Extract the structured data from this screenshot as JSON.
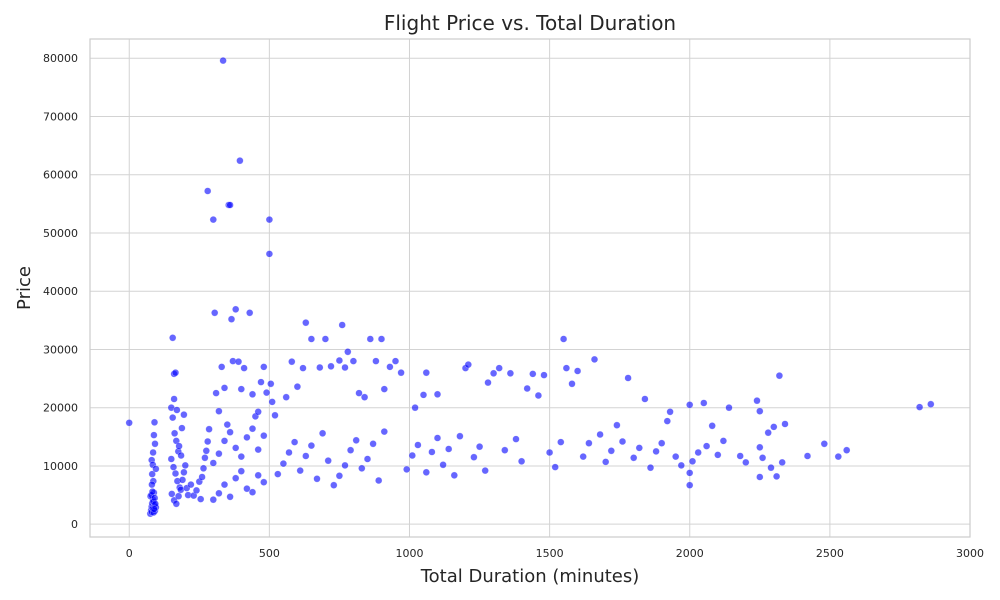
{
  "chart_data": {
    "type": "scatter",
    "title": "Flight Price vs. Total Duration",
    "xlabel": "Total Duration (minutes)",
    "ylabel": "Price",
    "xlim": [
      -140,
      3000
    ],
    "ylim": [
      -2200,
      83300
    ],
    "xticks": [
      0,
      500,
      1000,
      1500,
      2000,
      2500,
      3000
    ],
    "yticks": [
      0,
      10000,
      20000,
      30000,
      40000,
      50000,
      60000,
      70000,
      80000
    ],
    "grid": true,
    "color": "#0000ff",
    "series": [
      {
        "points": [
          [
            0,
            17400
          ],
          [
            75,
            1800
          ],
          [
            78,
            2400
          ],
          [
            80,
            3000
          ],
          [
            82,
            3600
          ],
          [
            85,
            4200
          ],
          [
            76,
            4800
          ],
          [
            88,
            5400
          ],
          [
            80,
            2100
          ],
          [
            84,
            2700
          ],
          [
            90,
            3300
          ],
          [
            86,
            3900
          ],
          [
            92,
            2300
          ],
          [
            95,
            2900
          ],
          [
            79,
            5000
          ],
          [
            83,
            5600
          ],
          [
            87,
            2000
          ],
          [
            91,
            4500
          ],
          [
            93,
            3500
          ],
          [
            89,
            2600
          ],
          [
            80,
            11000
          ],
          [
            85,
            12300
          ],
          [
            88,
            15300
          ],
          [
            90,
            17500
          ],
          [
            82,
            8600
          ],
          [
            86,
            7400
          ],
          [
            92,
            13800
          ],
          [
            84,
            10200
          ],
          [
            95,
            9500
          ],
          [
            81,
            6800
          ],
          [
            150,
            20000
          ],
          [
            155,
            32000
          ],
          [
            160,
            25800
          ],
          [
            165,
            26000
          ],
          [
            160,
            21500
          ],
          [
            170,
            19600
          ],
          [
            155,
            18300
          ],
          [
            162,
            15600
          ],
          [
            168,
            14300
          ],
          [
            175,
            12500
          ],
          [
            150,
            11200
          ],
          [
            158,
            9800
          ],
          [
            165,
            8700
          ],
          [
            172,
            7400
          ],
          [
            180,
            6300
          ],
          [
            152,
            5200
          ],
          [
            160,
            4100
          ],
          [
            168,
            3500
          ],
          [
            176,
            4800
          ],
          [
            184,
            5900
          ],
          [
            190,
            7600
          ],
          [
            195,
            8900
          ],
          [
            200,
            10100
          ],
          [
            185,
            11800
          ],
          [
            178,
            13400
          ],
          [
            188,
            16500
          ],
          [
            195,
            18800
          ],
          [
            205,
            6200
          ],
          [
            210,
            5000
          ],
          [
            220,
            6800
          ],
          [
            230,
            4900
          ],
          [
            240,
            5800
          ],
          [
            250,
            7300
          ],
          [
            255,
            4300
          ],
          [
            260,
            8100
          ],
          [
            265,
            9600
          ],
          [
            270,
            11400
          ],
          [
            275,
            12600
          ],
          [
            280,
            14200
          ],
          [
            285,
            16300
          ],
          [
            280,
            57200
          ],
          [
            300,
            52300
          ],
          [
            305,
            36300
          ],
          [
            310,
            22500
          ],
          [
            320,
            19400
          ],
          [
            330,
            27000
          ],
          [
            335,
            79600
          ],
          [
            340,
            23400
          ],
          [
            350,
            17100
          ],
          [
            355,
            54800
          ],
          [
            360,
            54800
          ],
          [
            365,
            35200
          ],
          [
            370,
            28000
          ],
          [
            380,
            36900
          ],
          [
            390,
            27900
          ],
          [
            395,
            62400
          ],
          [
            400,
            23200
          ],
          [
            410,
            26800
          ],
          [
            430,
            36300
          ],
          [
            440,
            22300
          ],
          [
            450,
            18500
          ],
          [
            460,
            19300
          ],
          [
            470,
            24400
          ],
          [
            480,
            27000
          ],
          [
            490,
            22600
          ],
          [
            500,
            52300
          ],
          [
            500,
            46400
          ],
          [
            505,
            24100
          ],
          [
            510,
            21000
          ],
          [
            520,
            18700
          ],
          [
            300,
            4200
          ],
          [
            320,
            5300
          ],
          [
            340,
            6800
          ],
          [
            360,
            4700
          ],
          [
            380,
            7900
          ],
          [
            400,
            9100
          ],
          [
            420,
            6100
          ],
          [
            440,
            5500
          ],
          [
            460,
            8400
          ],
          [
            480,
            7200
          ],
          [
            300,
            10500
          ],
          [
            320,
            12100
          ],
          [
            340,
            14300
          ],
          [
            360,
            15800
          ],
          [
            380,
            13100
          ],
          [
            400,
            11600
          ],
          [
            420,
            14900
          ],
          [
            440,
            16400
          ],
          [
            460,
            12800
          ],
          [
            480,
            15200
          ],
          [
            530,
            8600
          ],
          [
            550,
            10400
          ],
          [
            570,
            12300
          ],
          [
            590,
            14100
          ],
          [
            610,
            9200
          ],
          [
            630,
            11700
          ],
          [
            650,
            13500
          ],
          [
            670,
            7800
          ],
          [
            690,
            15600
          ],
          [
            710,
            10900
          ],
          [
            560,
            21800
          ],
          [
            580,
            27900
          ],
          [
            600,
            23600
          ],
          [
            620,
            26800
          ],
          [
            630,
            34600
          ],
          [
            650,
            31800
          ],
          [
            680,
            26900
          ],
          [
            700,
            31800
          ],
          [
            720,
            27100
          ],
          [
            750,
            28100
          ],
          [
            760,
            34200
          ],
          [
            770,
            26900
          ],
          [
            780,
            29600
          ],
          [
            800,
            28000
          ],
          [
            820,
            22500
          ],
          [
            840,
            21800
          ],
          [
            860,
            31800
          ],
          [
            880,
            28000
          ],
          [
            900,
            31800
          ],
          [
            910,
            23200
          ],
          [
            730,
            6700
          ],
          [
            750,
            8300
          ],
          [
            770,
            10100
          ],
          [
            790,
            12700
          ],
          [
            810,
            14400
          ],
          [
            830,
            9600
          ],
          [
            850,
            11200
          ],
          [
            870,
            13800
          ],
          [
            890,
            7500
          ],
          [
            910,
            15900
          ],
          [
            930,
            27000
          ],
          [
            950,
            28000
          ],
          [
            970,
            26000
          ],
          [
            990,
            9400
          ],
          [
            1010,
            11800
          ],
          [
            1030,
            13600
          ],
          [
            1050,
            22200
          ],
          [
            1060,
            8900
          ],
          [
            1080,
            12400
          ],
          [
            1100,
            14800
          ],
          [
            1020,
            20000
          ],
          [
            1060,
            26000
          ],
          [
            1100,
            22300
          ],
          [
            1120,
            10200
          ],
          [
            1140,
            12900
          ],
          [
            1160,
            8400
          ],
          [
            1180,
            15100
          ],
          [
            1200,
            26800
          ],
          [
            1210,
            27400
          ],
          [
            1230,
            11500
          ],
          [
            1250,
            13300
          ],
          [
            1270,
            9200
          ],
          [
            1280,
            24300
          ],
          [
            1300,
            25900
          ],
          [
            1320,
            26800
          ],
          [
            1340,
            12700
          ],
          [
            1360,
            25900
          ],
          [
            1380,
            14600
          ],
          [
            1400,
            10800
          ],
          [
            1420,
            23300
          ],
          [
            1440,
            25800
          ],
          [
            1460,
            22100
          ],
          [
            1480,
            25600
          ],
          [
            1500,
            12300
          ],
          [
            1520,
            9800
          ],
          [
            1540,
            14100
          ],
          [
            1550,
            31800
          ],
          [
            1560,
            26800
          ],
          [
            1580,
            24100
          ],
          [
            1600,
            26300
          ],
          [
            1620,
            11600
          ],
          [
            1640,
            13900
          ],
          [
            1660,
            28300
          ],
          [
            1680,
            15400
          ],
          [
            1700,
            10700
          ],
          [
            1720,
            12600
          ],
          [
            1740,
            17000
          ],
          [
            1760,
            14200
          ],
          [
            1780,
            25100
          ],
          [
            1800,
            11400
          ],
          [
            1820,
            13100
          ],
          [
            1840,
            21500
          ],
          [
            1860,
            9700
          ],
          [
            1880,
            12500
          ],
          [
            1900,
            13900
          ],
          [
            1920,
            17700
          ],
          [
            1930,
            19300
          ],
          [
            1950,
            11600
          ],
          [
            1970,
            10100
          ],
          [
            2000,
            20500
          ],
          [
            2000,
            6700
          ],
          [
            2000,
            8800
          ],
          [
            2010,
            10800
          ],
          [
            2030,
            12300
          ],
          [
            2050,
            20800
          ],
          [
            2060,
            13400
          ],
          [
            2080,
            16900
          ],
          [
            2100,
            11900
          ],
          [
            2120,
            14300
          ],
          [
            2140,
            20000
          ],
          [
            2180,
            11700
          ],
          [
            2200,
            10600
          ],
          [
            2240,
            21200
          ],
          [
            2250,
            19400
          ],
          [
            2250,
            8100
          ],
          [
            2250,
            13200
          ],
          [
            2260,
            11400
          ],
          [
            2280,
            15700
          ],
          [
            2290,
            9700
          ],
          [
            2300,
            16700
          ],
          [
            2310,
            8200
          ],
          [
            2320,
            25500
          ],
          [
            2330,
            10600
          ],
          [
            2340,
            17200
          ],
          [
            2420,
            11700
          ],
          [
            2480,
            13800
          ],
          [
            2530,
            11600
          ],
          [
            2560,
            12700
          ],
          [
            2820,
            20100
          ],
          [
            2860,
            20600
          ]
        ]
      }
    ]
  }
}
